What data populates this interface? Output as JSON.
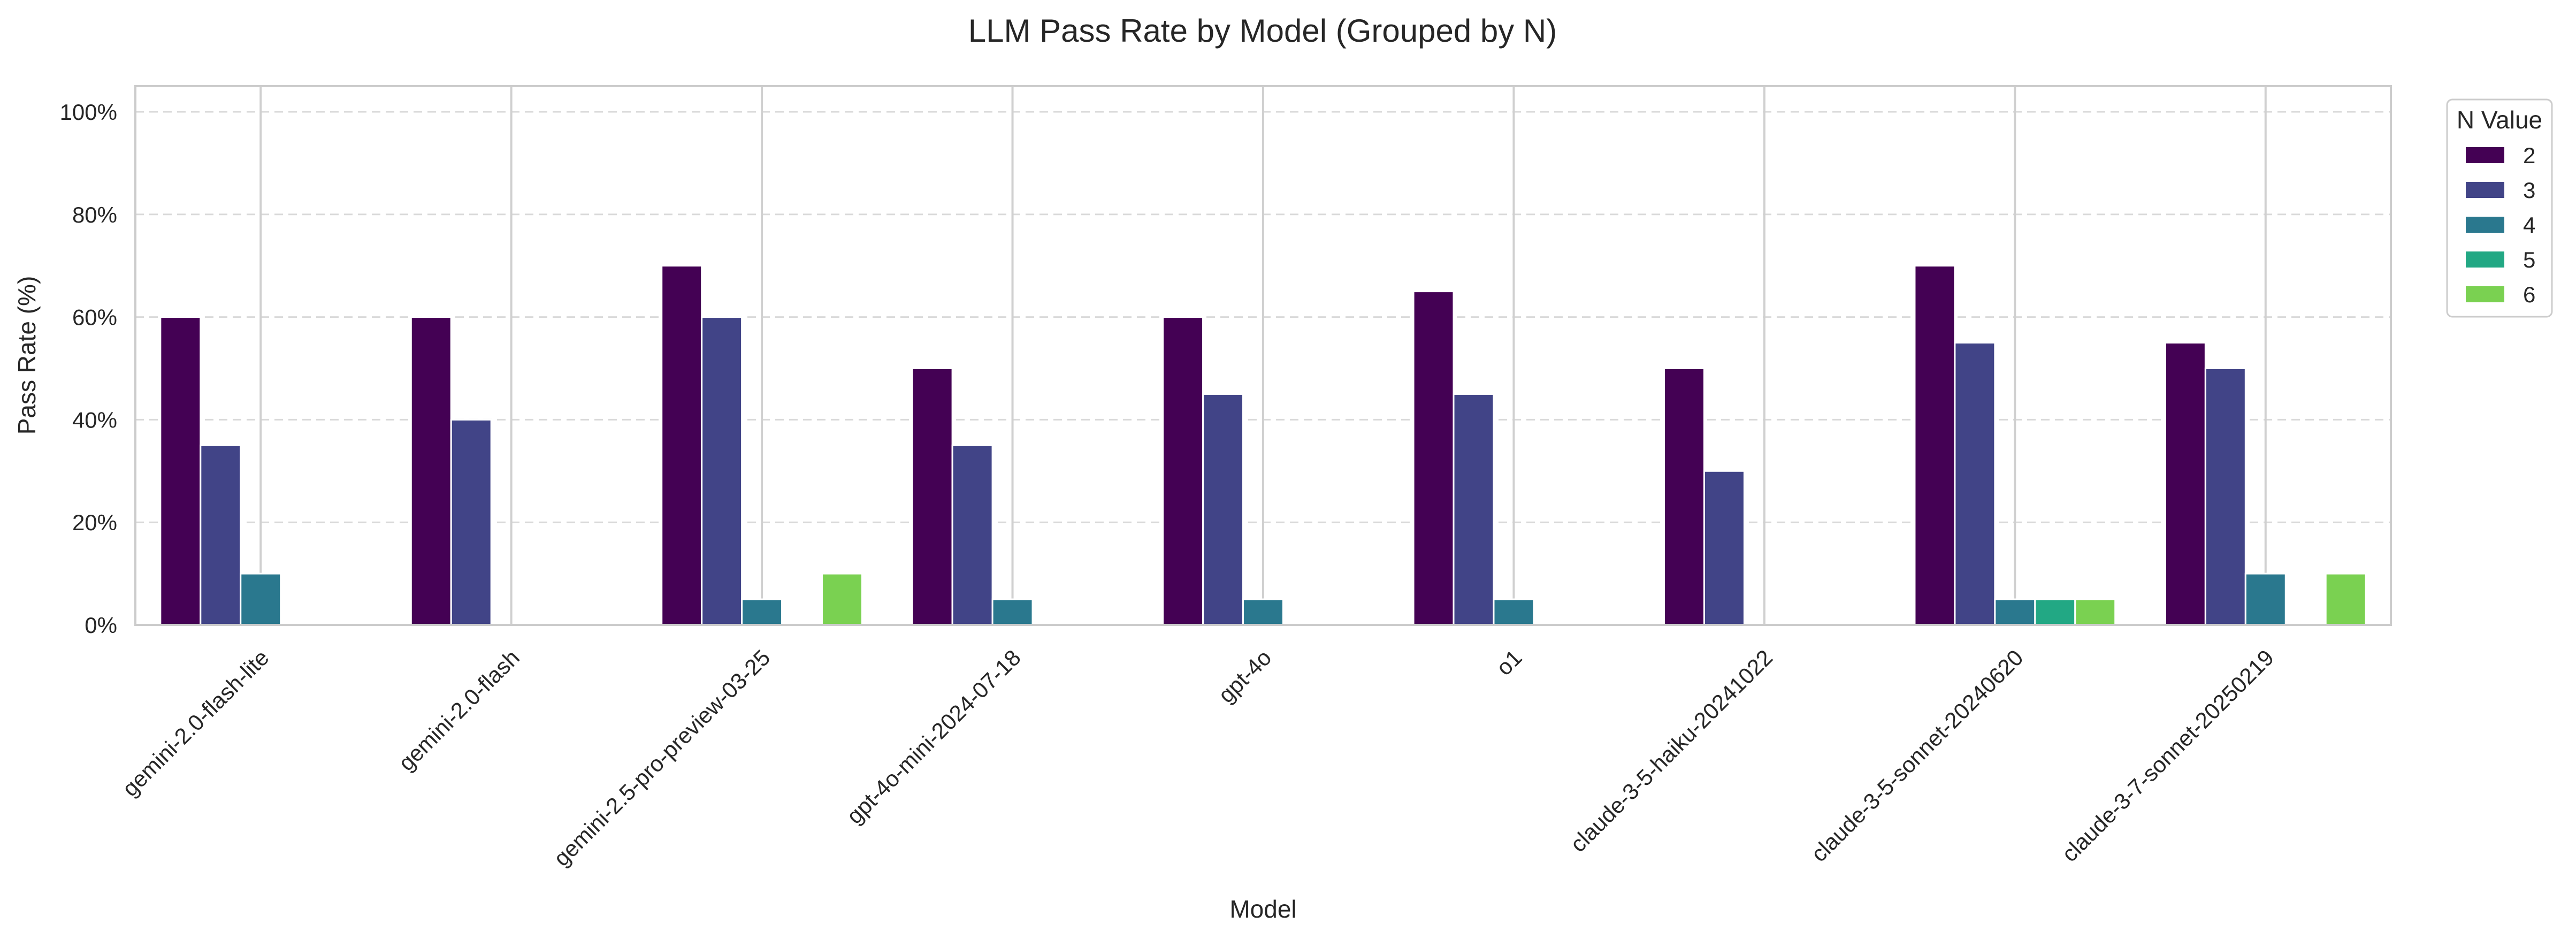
{
  "chart_data": {
    "type": "bar",
    "title": "LLM Pass Rate by Model (Grouped by N)",
    "xlabel": "Model",
    "ylabel": "Pass Rate (%)",
    "ylim": [
      0,
      105
    ],
    "yticks": [
      0,
      20,
      40,
      60,
      80,
      100
    ],
    "ytick_labels": [
      "0%",
      "20%",
      "40%",
      "60%",
      "80%",
      "100%"
    ],
    "grid": "y-dashed",
    "legend_title": "N Value",
    "legend_position": "outside-top-right",
    "categories": [
      "gemini-2.0-flash-lite",
      "gemini-2.0-flash",
      "gemini-2.5-pro-preview-03-25",
      "gpt-4o-mini-2024-07-18",
      "gpt-4o",
      "o1",
      "claude-3-5-haiku-20241022",
      "claude-3-5-sonnet-20240620",
      "claude-3-7-sonnet-20250219"
    ],
    "series": [
      {
        "name": "2",
        "color": "#440154",
        "values": [
          60,
          60,
          70,
          50,
          60,
          65,
          50,
          70,
          55
        ]
      },
      {
        "name": "3",
        "color": "#414487",
        "values": [
          35,
          40,
          60,
          35,
          45,
          45,
          30,
          55,
          50
        ]
      },
      {
        "name": "4",
        "color": "#2a788e",
        "values": [
          10,
          null,
          5,
          5,
          5,
          5,
          null,
          5,
          10
        ]
      },
      {
        "name": "5",
        "color": "#22a884",
        "values": [
          null,
          null,
          null,
          null,
          null,
          null,
          null,
          5,
          null
        ]
      },
      {
        "name": "6",
        "color": "#7ad151",
        "values": [
          null,
          null,
          10,
          null,
          null,
          null,
          null,
          5,
          10
        ]
      }
    ]
  }
}
